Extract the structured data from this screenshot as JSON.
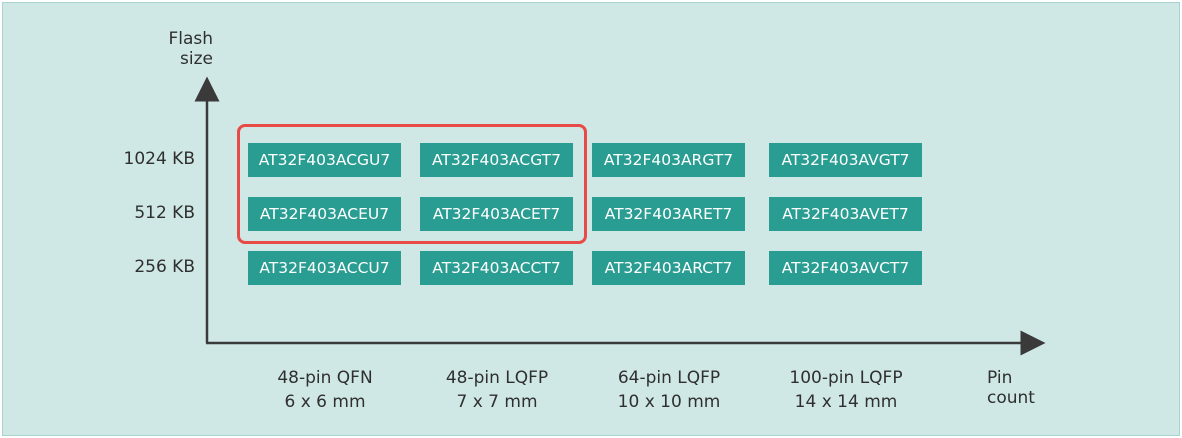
{
  "axes": {
    "y_title": [
      "Flash",
      "size"
    ],
    "x_title": [
      "Pin",
      "count"
    ],
    "color": "#3a3a3a"
  },
  "rows": [
    {
      "label": "1024 KB",
      "parts": [
        "AT32F403ACGU7",
        "AT32F403ACGT7",
        "AT32F403ARGT7",
        "AT32F403AVGT7"
      ]
    },
    {
      "label": "512 KB",
      "parts": [
        "AT32F403ACEU7",
        "AT32F403ACET7",
        "AT32F403ARET7",
        "AT32F403AVET7"
      ]
    },
    {
      "label": "256 KB",
      "parts": [
        "AT32F403ACCU7",
        "AT32F403ACCT7",
        "AT32F403ARCT7",
        "AT32F403AVCT7"
      ]
    }
  ],
  "columns": [
    {
      "package": "48-pin QFN",
      "size": "6 x 6 mm"
    },
    {
      "package": "48-pin LQFP",
      "size": "7 x 7 mm"
    },
    {
      "package": "64-pin LQFP",
      "size": "10 x 10 mm"
    },
    {
      "package": "100-pin LQFP",
      "size": "14 x 14 mm"
    }
  ],
  "colors": {
    "background": "#cfe8e6",
    "chip": "#2a9d92",
    "chip_text": "#ffffff",
    "highlight": "#e84a47"
  }
}
